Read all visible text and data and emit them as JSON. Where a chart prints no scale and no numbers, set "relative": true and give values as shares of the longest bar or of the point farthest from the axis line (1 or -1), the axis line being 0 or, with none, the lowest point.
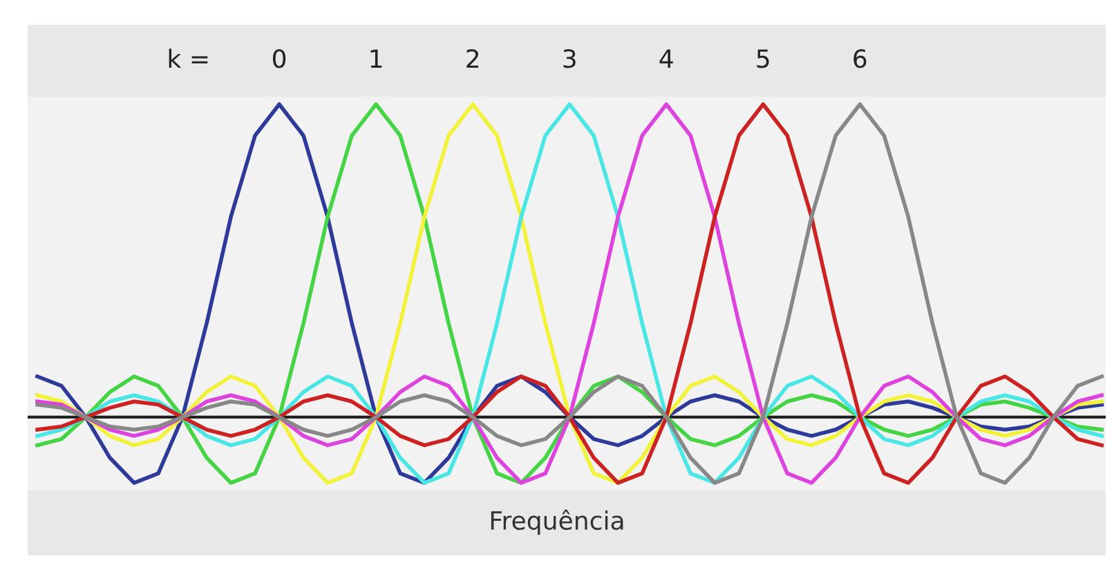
{
  "chart_data": {
    "type": "line",
    "relative": true,
    "xlabel": "Frequência",
    "legend_title": "k =",
    "legend": "top",
    "grid": false,
    "marker": "none",
    "line_style": "solid",
    "categories": [
      null,
      null,
      null,
      null,
      null,
      null,
      null,
      null,
      null,
      null,
      null,
      null,
      null,
      null,
      null,
      null,
      null,
      null,
      null,
      null,
      null,
      null,
      null,
      null,
      null,
      null,
      null,
      null,
      null,
      null,
      null,
      null,
      null,
      null,
      null,
      null,
      null,
      null,
      null,
      null,
      null,
      null,
      null,
      null,
      null
    ],
    "series": [
      {
        "name": "0",
        "color": "#2e3a9a",
        "values": [
          0.13,
          0.1,
          0,
          -0.13,
          -0.21,
          -0.18,
          0,
          0.3,
          0.64,
          0.9,
          1,
          0.9,
          0.64,
          0.3,
          0,
          -0.18,
          -0.21,
          -0.13,
          0,
          0.1,
          0.13,
          0.08,
          0,
          -0.07,
          -0.09,
          -0.06,
          0,
          0.05,
          0.07,
          0.05,
          0,
          -0.04,
          -0.06,
          -0.04,
          0,
          0.04,
          0.05,
          0.03,
          0,
          -0.03,
          -0.04,
          -0.03,
          0,
          0.03,
          0.04
        ]
      },
      {
        "name": "1",
        "color": "#44d444",
        "values": [
          -0.09,
          -0.07,
          0,
          0.08,
          0.13,
          0.1,
          0,
          -0.13,
          -0.21,
          -0.18,
          0,
          0.3,
          0.64,
          0.9,
          1,
          0.9,
          0.64,
          0.3,
          0,
          -0.18,
          -0.21,
          -0.13,
          0,
          0.1,
          0.13,
          0.08,
          0,
          -0.07,
          -0.09,
          -0.06,
          0,
          0.05,
          0.07,
          0.05,
          0,
          -0.04,
          -0.06,
          -0.04,
          0,
          0.04,
          0.05,
          0.03,
          0,
          -0.03,
          -0.04
        ]
      },
      {
        "name": "2",
        "color": "#f2f23a",
        "values": [
          0.07,
          0.05,
          0,
          -0.06,
          -0.09,
          -0.07,
          0,
          0.08,
          0.13,
          0.1,
          0,
          -0.13,
          -0.21,
          -0.18,
          0,
          0.3,
          0.64,
          0.9,
          1,
          0.9,
          0.64,
          0.3,
          0,
          -0.18,
          -0.21,
          -0.13,
          0,
          0.1,
          0.13,
          0.08,
          0,
          -0.07,
          -0.09,
          -0.06,
          0,
          0.05,
          0.07,
          0.05,
          0,
          -0.04,
          -0.06,
          -0.04,
          0,
          0.04,
          0.05
        ]
      },
      {
        "name": "3",
        "color": "#4ae6e6",
        "values": [
          -0.06,
          -0.04,
          0,
          0.05,
          0.07,
          0.05,
          0,
          -0.06,
          -0.09,
          -0.07,
          0,
          0.08,
          0.13,
          0.1,
          0,
          -0.13,
          -0.21,
          -0.18,
          0,
          0.3,
          0.64,
          0.9,
          1,
          0.9,
          0.64,
          0.3,
          0,
          -0.18,
          -0.21,
          -0.13,
          0,
          0.1,
          0.13,
          0.08,
          0,
          -0.07,
          -0.09,
          -0.06,
          0,
          0.05,
          0.07,
          0.05,
          0,
          -0.04,
          -0.06
        ]
      },
      {
        "name": "4",
        "color": "#dd44dd",
        "values": [
          0.05,
          0.04,
          0,
          -0.04,
          -0.06,
          -0.04,
          0,
          0.05,
          0.07,
          0.05,
          0,
          -0.06,
          -0.09,
          -0.07,
          0,
          0.08,
          0.13,
          0.1,
          0,
          -0.13,
          -0.21,
          -0.18,
          0,
          0.3,
          0.64,
          0.9,
          1,
          0.9,
          0.64,
          0.3,
          0,
          -0.18,
          -0.21,
          -0.13,
          0,
          0.1,
          0.13,
          0.08,
          0,
          -0.07,
          -0.09,
          -0.06,
          0,
          0.05,
          0.07
        ]
      },
      {
        "name": "5",
        "color": "#cc2222",
        "values": [
          -0.04,
          -0.03,
          0,
          0.03,
          0.05,
          0.04,
          0,
          -0.04,
          -0.06,
          -0.04,
          0,
          0.05,
          0.07,
          0.05,
          0,
          -0.06,
          -0.09,
          -0.07,
          0,
          0.08,
          0.13,
          0.1,
          0,
          -0.13,
          -0.21,
          -0.18,
          0,
          0.3,
          0.64,
          0.9,
          1,
          0.9,
          0.64,
          0.3,
          0,
          -0.18,
          -0.21,
          -0.13,
          0,
          0.1,
          0.13,
          0.08,
          0,
          -0.07,
          -0.09
        ]
      },
      {
        "name": "6",
        "color": "#888888",
        "values": [
          0.04,
          0.03,
          0,
          -0.03,
          -0.04,
          -0.03,
          0,
          0.03,
          0.05,
          0.04,
          0,
          -0.04,
          -0.06,
          -0.04,
          0,
          0.05,
          0.07,
          0.05,
          0,
          -0.06,
          -0.09,
          -0.07,
          0,
          0.08,
          0.13,
          0.1,
          0,
          -0.13,
          -0.21,
          -0.18,
          0,
          0.3,
          0.64,
          0.9,
          1,
          0.9,
          0.64,
          0.3,
          0,
          -0.18,
          -0.21,
          -0.13,
          0,
          0.1,
          0.13
        ]
      }
    ]
  }
}
